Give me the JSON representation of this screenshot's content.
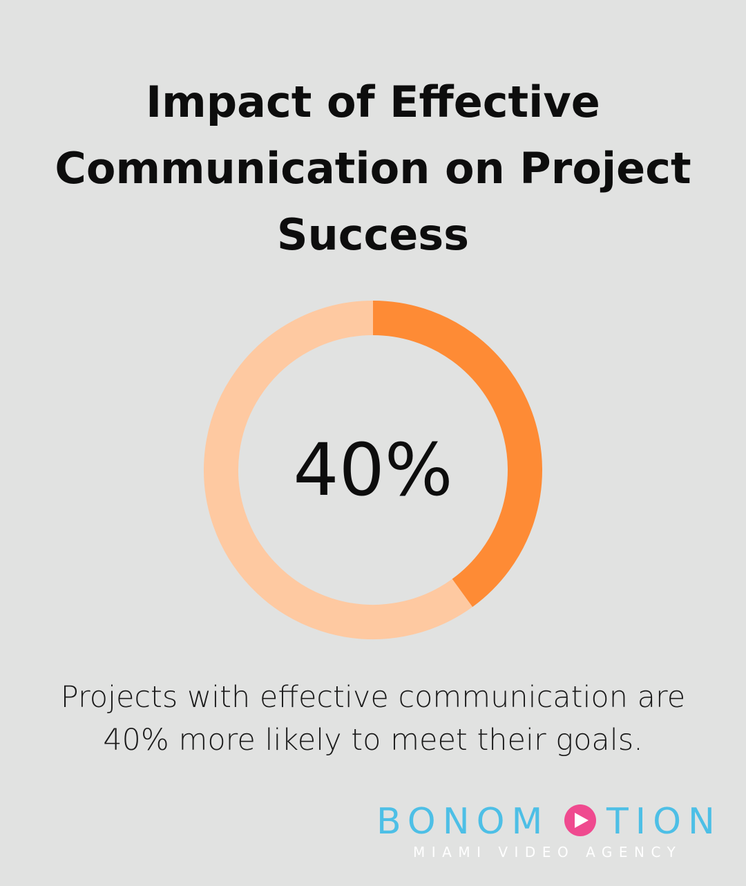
{
  "title": "Impact of Effective Communication on Project Success",
  "caption": "Projects with effective communication are 40% more likely to meet their goals.",
  "chart_data": {
    "type": "pie",
    "style": "donut",
    "title": "",
    "center_label": "40%",
    "slices": [
      {
        "label": "",
        "value": 40
      },
      {
        "label": "",
        "value": 60
      }
    ]
  },
  "colors": {
    "background": "#e1e2e1",
    "highlight": "#fe8b35",
    "remainder": "#fec9a1",
    "brand_blue": "#4dbfe6",
    "brand_pink": "#ef4a8f"
  },
  "logo": {
    "brand_prefix": "BONOM",
    "brand_suffix": "TION",
    "tagline": "MIAMI VIDEO AGENCY",
    "icon": "play-icon"
  }
}
